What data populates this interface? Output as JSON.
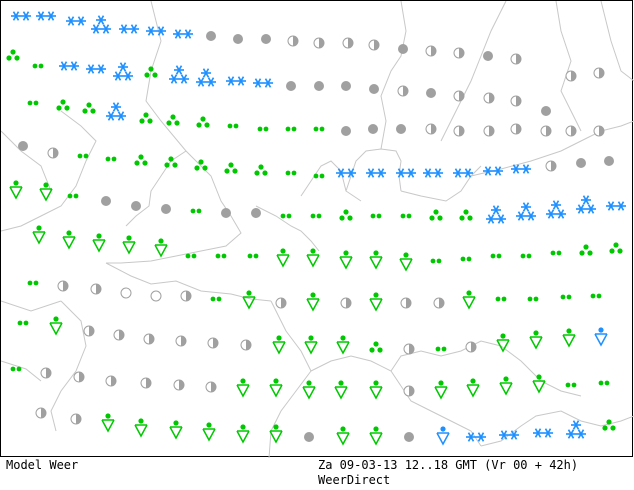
{
  "footer": {
    "model_label": "Model Weer",
    "valid_time": "Za 09-03-13 12..18 GMT (Vr 00 + 42h)",
    "source": "WeerDirect"
  },
  "colors": {
    "snow": "#1e90ff",
    "rain": "#00c800",
    "cloud": "#a0a0a0",
    "coast": "#c8c8c8"
  },
  "legend_symbols": [
    "snow-icon",
    "showers-icon",
    "rain-icon",
    "overcast-icon",
    "partly-cloudy-icon",
    "fair-icon"
  ]
}
